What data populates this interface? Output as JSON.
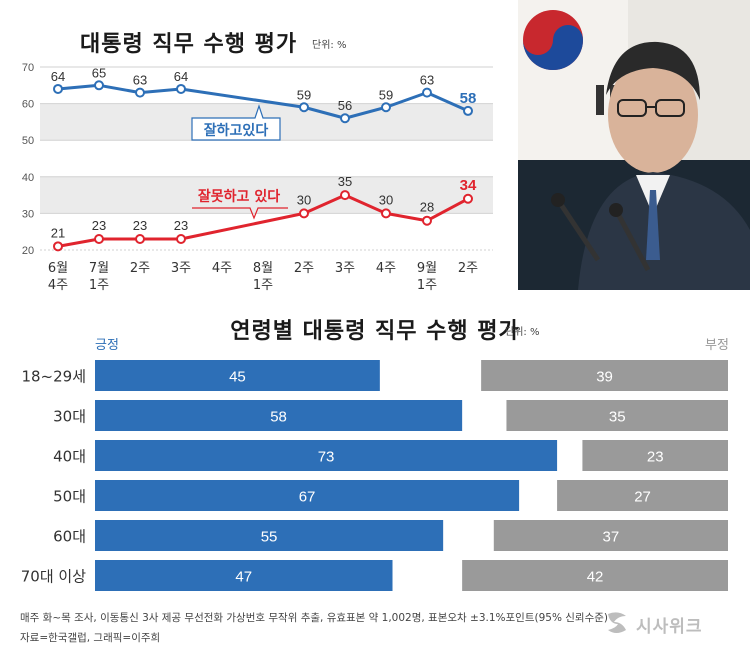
{
  "top_chart": {
    "title": "대통령 직무 수행 평가",
    "unit": "단위: %"
  },
  "bottom_chart": {
    "title": "연령별 대통령 직무 수행 평가",
    "unit": "단위: %",
    "positive_label": "긍정",
    "negative_label": "부정"
  },
  "footnote": "매주 화~목 조사, 이동통신 3사 제공 무선전화 가상번호 무작위 추출, 유효표본 약 1,002명, 표본오차 ±3.1%포인트(95% 신뢰수준)",
  "credit": "자료=한국갤럽, 그래픽=이주희",
  "logo": {
    "text": "시사위크"
  },
  "colors": {
    "positive": "#2d6fb7",
    "negative": "#e0242e",
    "negative_bar": "#9a9a9a",
    "grid_band": "#ebebeb"
  },
  "chart_data": [
    {
      "type": "line",
      "title": "대통령 직무 수행 평가",
      "x": [
        "6월 4주",
        "7월 1주",
        "2주",
        "3주",
        "4주",
        "8월 1주",
        "2주",
        "3주",
        "4주",
        "9월 1주",
        "2주"
      ],
      "ylim": [
        20,
        70
      ],
      "yticks": [
        20,
        30,
        40,
        50,
        60,
        70
      ],
      "series": [
        {
          "name": "잘하고있다",
          "color": "#2d6fb7",
          "values": [
            64,
            65,
            63,
            64,
            null,
            null,
            59,
            56,
            59,
            63,
            58
          ]
        },
        {
          "name": "잘못하고 있다",
          "color": "#e0242e",
          "values": [
            21,
            23,
            23,
            23,
            null,
            null,
            30,
            35,
            30,
            28,
            34
          ]
        }
      ],
      "grid": true
    },
    {
      "type": "bar",
      "title": "연령별 대통령 직무 수행 평가",
      "categories": [
        "18~29세",
        "30대",
        "40대",
        "50대",
        "60대",
        "70대 이상"
      ],
      "series": [
        {
          "name": "긍정",
          "color": "#2d6fb7",
          "values": [
            45,
            58,
            73,
            67,
            55,
            47
          ]
        },
        {
          "name": "부정",
          "color": "#9a9a9a",
          "values": [
            39,
            35,
            23,
            27,
            37,
            42
          ]
        }
      ],
      "orientation": "horizontal"
    }
  ]
}
